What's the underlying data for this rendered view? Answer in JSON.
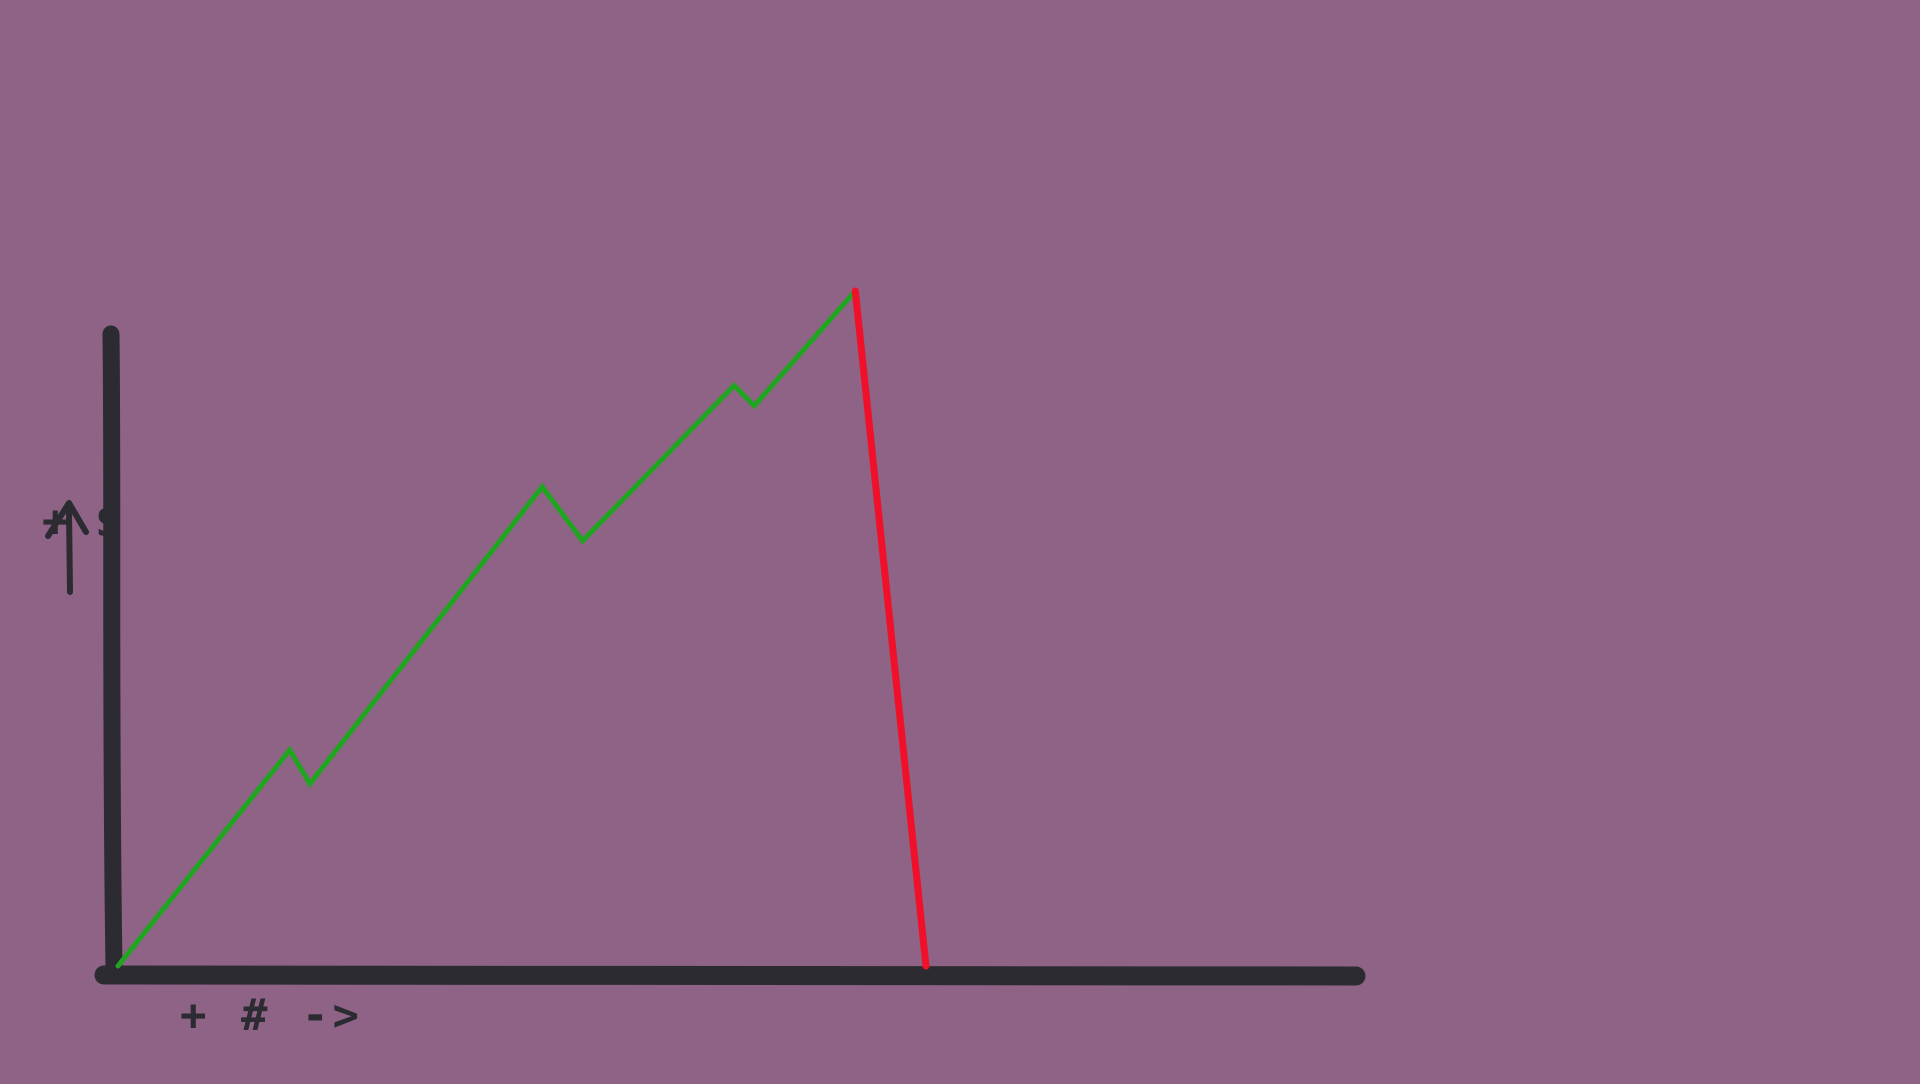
{
  "colors": {
    "background": "#8f6386",
    "axis": "#2b2b31",
    "rise_line": "#1fa51f",
    "drop_line": "#f0102a"
  },
  "chart_data": {
    "type": "line",
    "title": "",
    "xlabel": "+ # ->",
    "ylabel": "+ $",
    "y_arrow": "up",
    "grid": false,
    "legend": "none",
    "xlim": [
      0,
      100
    ],
    "ylim": [
      0,
      100
    ],
    "series": [
      {
        "segment": "rise",
        "color": "green",
        "points": [
          {
            "x": 0,
            "y": 0
          },
          {
            "x": 17,
            "y": 32
          },
          {
            "x": 19,
            "y": 27
          },
          {
            "x": 42,
            "y": 71
          },
          {
            "x": 46,
            "y": 63
          },
          {
            "x": 61,
            "y": 86
          },
          {
            "x": 63,
            "y": 83
          },
          {
            "x": 73,
            "y": 100
          }
        ]
      },
      {
        "segment": "drop",
        "color": "red",
        "points": [
          {
            "x": 73,
            "y": 100
          },
          {
            "x": 80,
            "y": 0
          }
        ]
      }
    ]
  }
}
